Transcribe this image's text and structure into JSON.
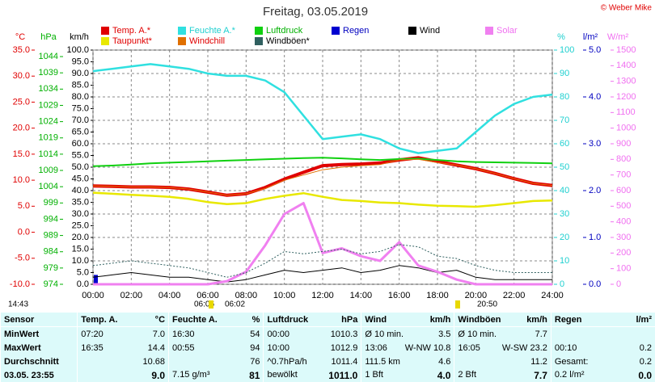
{
  "chart_data": {
    "type": "line",
    "title": "Freitag, 03.05.2019",
    "copyright": "© Weber Mike",
    "xlim": [
      0,
      24
    ],
    "xticks": [
      {
        "value": 0,
        "label": "00:00"
      },
      {
        "value": 2,
        "label": "02:00"
      },
      {
        "value": 4,
        "label": "04:00"
      },
      {
        "value": 6,
        "label": "06:00"
      },
      {
        "value": 8,
        "label": "08:00"
      },
      {
        "value": 10,
        "label": "10:00"
      },
      {
        "value": 12,
        "label": "12:00"
      },
      {
        "value": 14,
        "label": "14:00"
      },
      {
        "value": 16,
        "label": "16:00"
      },
      {
        "value": 18,
        "label": "18:00"
      },
      {
        "value": 20,
        "label": "20:00"
      },
      {
        "value": 22,
        "label": "22:00"
      },
      {
        "value": 24,
        "label": "24:00"
      }
    ],
    "grid": true,
    "grid_axis": "pct",
    "axes": {
      "c": {
        "label": "°C",
        "color": "#e00000",
        "side": "left",
        "pos": 37,
        "lim": [
          -10,
          35
        ],
        "ticks": [
          {
            "value": 35,
            "label": "35.0"
          },
          {
            "value": 30,
            "label": "30.0"
          },
          {
            "value": 25,
            "label": "25.0"
          },
          {
            "value": 20,
            "label": "20.0"
          },
          {
            "value": 15,
            "label": "15.0"
          },
          {
            "value": 10,
            "label": "10.0"
          },
          {
            "value": 5,
            "label": "5.0"
          },
          {
            "value": 0,
            "label": "0.0"
          },
          {
            "value": -5,
            "label": "-5.0"
          },
          {
            "value": -10,
            "label": "-10.0"
          }
        ]
      },
      "hpa": {
        "label": "hPa",
        "color": "#00b000",
        "side": "left",
        "pos": 72,
        "lim": [
          974,
          1046
        ],
        "ticks": [
          1044,
          1039,
          1034,
          1029,
          1024,
          1019,
          1014,
          1009,
          1004,
          999,
          994,
          989,
          984,
          979,
          974
        ]
      },
      "kmh": {
        "label": "km/h",
        "color": "#000000",
        "side": "left",
        "pos": 110,
        "lim": [
          0,
          100
        ],
        "ticks": [
          {
            "value": 100,
            "label": "100.0"
          },
          {
            "value": 95,
            "label": "95.0"
          },
          {
            "value": 90,
            "label": "90.0"
          },
          {
            "value": 85,
            "label": "85.0"
          },
          {
            "value": 80,
            "label": "80.0"
          },
          {
            "value": 75,
            "label": "75.0"
          },
          {
            "value": 70,
            "label": "70.0"
          },
          {
            "value": 65,
            "label": "65.0"
          },
          {
            "value": 60,
            "label": "60.0"
          },
          {
            "value": 55,
            "label": "55.0"
          },
          {
            "value": 50,
            "label": "50.0"
          },
          {
            "value": 45,
            "label": "45.0"
          },
          {
            "value": 40,
            "label": "40.0"
          },
          {
            "value": 35,
            "label": "35.0"
          },
          {
            "value": 30,
            "label": "30.0"
          },
          {
            "value": 25,
            "label": "25.0"
          },
          {
            "value": 20,
            "label": "20.0"
          },
          {
            "value": 15,
            "label": "15.0"
          },
          {
            "value": 10,
            "label": "10.0"
          },
          {
            "value": 5,
            "label": "5.0"
          },
          {
            "value": 0,
            "label": "0.0"
          }
        ]
      },
      "pct": {
        "label": "%",
        "color": "#20d0d0",
        "side": "right",
        "pos": 692,
        "lim": [
          0,
          100
        ],
        "ticks": [
          100,
          90,
          80,
          70,
          60,
          50,
          40,
          30,
          20,
          10,
          0
        ]
      },
      "lmm": {
        "label": "l/m²",
        "color": "#0000c0",
        "side": "right",
        "pos": 728,
        "lim": [
          0,
          5
        ],
        "ticks": [
          {
            "value": 5,
            "label": "5.0"
          },
          {
            "value": 4,
            "label": "4.0"
          },
          {
            "value": 3,
            "label": "3.0"
          },
          {
            "value": 2,
            "label": "2.0"
          },
          {
            "value": 1,
            "label": "1.0"
          },
          {
            "value": 0,
            "label": "0.0"
          }
        ]
      },
      "wm2": {
        "label": "W/m²",
        "color": "#f070f0",
        "side": "right",
        "pos": 762,
        "lim": [
          0,
          1500
        ],
        "ticks": [
          1500,
          1400,
          1300,
          1200,
          1100,
          1000,
          900,
          800,
          700,
          600,
          500,
          400,
          300,
          200,
          100,
          0
        ]
      }
    },
    "x": [
      0,
      1,
      2,
      3,
      4,
      5,
      6,
      7,
      8,
      9,
      10,
      11,
      12,
      13,
      14,
      15,
      16,
      17,
      18,
      19,
      20,
      21,
      22,
      23,
      24
    ],
    "series": [
      {
        "name": "Temp. A.*",
        "color": "#e00000",
        "legend_color": "#e00000",
        "axis": "c",
        "width": 4,
        "values": [
          8.9,
          8.8,
          8.7,
          8.7,
          8.6,
          8.3,
          7.7,
          7.1,
          7.4,
          8.6,
          10.2,
          11.5,
          12.8,
          13.0,
          13.1,
          13.3,
          13.9,
          14.3,
          13.6,
          12.9,
          12.2,
          11.3,
          10.3,
          9.4,
          9.0
        ]
      },
      {
        "name": "Feuchte A.*",
        "color": "#30e0e0",
        "legend_color": "#20d0d0",
        "axis": "pct",
        "width": 2.5,
        "values": [
          91,
          92,
          93,
          94,
          93,
          92,
          90,
          89,
          89,
          87,
          82,
          72,
          62,
          63,
          64,
          62,
          58,
          56,
          57,
          58,
          65,
          72,
          77,
          80,
          81
        ]
      },
      {
        "name": "Luftdruck",
        "color": "#10d010",
        "legend_color": "#00b000",
        "axis": "hpa",
        "width": 2,
        "values": [
          1010.3,
          1010.5,
          1010.8,
          1011.2,
          1011.4,
          1011.6,
          1011.8,
          1012.0,
          1012.2,
          1012.4,
          1012.6,
          1012.8,
          1012.9,
          1012.7,
          1012.4,
          1012.2,
          1012.5,
          1012.6,
          1012.2,
          1011.8,
          1011.6,
          1011.5,
          1011.4,
          1011.3,
          1011.2
        ]
      },
      {
        "name": "Regen",
        "color": "#0000d0",
        "legend_color": "#0000c0",
        "axis": "lmm",
        "bars": true,
        "values": [
          0.2,
          0,
          0,
          0,
          0,
          0,
          0,
          0,
          0,
          0,
          0,
          0,
          0,
          0,
          0,
          0,
          0,
          0,
          0,
          0,
          0,
          0,
          0,
          0,
          0
        ]
      },
      {
        "name": "Wind",
        "color": "#000000",
        "legend_color": "#000000",
        "axis": "kmh",
        "width": 1,
        "values": [
          3,
          4,
          5,
          4,
          3,
          3,
          2,
          1,
          2,
          4,
          6,
          5,
          6,
          7,
          5,
          6,
          8,
          7,
          5,
          6,
          3,
          2,
          2,
          2,
          2
        ]
      },
      {
        "name": "Solar",
        "color": "#f080f0",
        "legend_color": "#f070f0",
        "axis": "wm2",
        "width": 3,
        "values": [
          0,
          0,
          0,
          0,
          0,
          0,
          0,
          20,
          80,
          250,
          450,
          520,
          200,
          230,
          180,
          150,
          270,
          120,
          80,
          30,
          0,
          0,
          0,
          0,
          0
        ]
      },
      {
        "name": "Taupunkt*",
        "color": "#e8e800",
        "legend_color": "#e00000",
        "axis": "c",
        "width": 2.5,
        "values": [
          7.6,
          7.4,
          7.2,
          7.0,
          6.8,
          6.4,
          5.8,
          5.4,
          5.6,
          6.4,
          7.0,
          7.5,
          6.8,
          6.2,
          6.0,
          5.7,
          5.6,
          5.3,
          5.1,
          5.0,
          4.9,
          5.2,
          5.6,
          6.0,
          6.1
        ]
      },
      {
        "name": "Windchill",
        "color": "#e07000",
        "legend_color": "#e00000",
        "axis": "c",
        "width": 1,
        "values": [
          8.9,
          8.8,
          8.7,
          8.7,
          8.6,
          8.3,
          7.7,
          7.1,
          7.4,
          8.4,
          10.0,
          11.0,
          12.0,
          12.5,
          12.8,
          13.0,
          13.9,
          14.0,
          13.4,
          12.9,
          12.2,
          11.3,
          10.3,
          9.4,
          9.0
        ]
      },
      {
        "name": "Windböen*",
        "color": "#306060",
        "legend_color": "#000000",
        "axis": "kmh",
        "width": 1,
        "dash": true,
        "values": [
          8,
          9,
          10,
          9,
          8,
          7,
          5,
          3,
          5,
          9,
          14,
          13,
          14,
          15,
          13,
          14,
          17,
          16,
          12,
          11,
          8,
          6,
          5,
          5,
          5
        ]
      }
    ],
    "annotations": [
      "14:43",
      "06:06",
      "06:02",
      "20:50"
    ]
  },
  "table": {
    "header": [
      [
        "Sensor"
      ],
      [
        "Temp. A.",
        "°C"
      ],
      [
        "Feuchte A.",
        "%"
      ],
      [
        "Luftdruck",
        "hPa"
      ],
      [
        "Wind",
        "km/h"
      ],
      [
        "Windböen",
        "km/h"
      ],
      [
        "Regen",
        "l/m²"
      ]
    ],
    "rows": [
      [
        [
          "MinWert"
        ],
        [
          "07:20",
          "7.0"
        ],
        [
          "16:30",
          "54"
        ],
        [
          "00:00",
          "1010.3"
        ],
        [
          "Ø 10 min.",
          "3.5"
        ],
        [
          "Ø 10 min.",
          "7.7"
        ],
        []
      ],
      [
        [
          "MaxWert"
        ],
        [
          "16:35",
          "14.4"
        ],
        [
          "00:55",
          "94"
        ],
        [
          "10:00",
          "1012.9"
        ],
        [
          "13:06",
          "W-NW 10.8"
        ],
        [
          "16:05",
          "W-SW 23.2"
        ],
        [
          "00:10",
          "0.2"
        ]
      ],
      [
        [
          "Durchschnitt"
        ],
        [
          "10.68"
        ],
        [
          "76"
        ],
        [
          "^0.7hPa/h",
          "1011.4"
        ],
        [
          "111.5 km",
          "4.6"
        ],
        [
          "11.2"
        ],
        [
          "Gesamt:",
          "0.2"
        ]
      ],
      [
        [
          "03.05. 23:55"
        ],
        [
          "9.0"
        ],
        [
          "7.15 g/m³",
          "81"
        ],
        [
          "bewölkt",
          "1011.0"
        ],
        [
          "1 Bft",
          "4.0"
        ],
        [
          "2 Bft",
          "7.7"
        ],
        [
          "0.2 l/m²",
          "0.0"
        ]
      ]
    ]
  }
}
